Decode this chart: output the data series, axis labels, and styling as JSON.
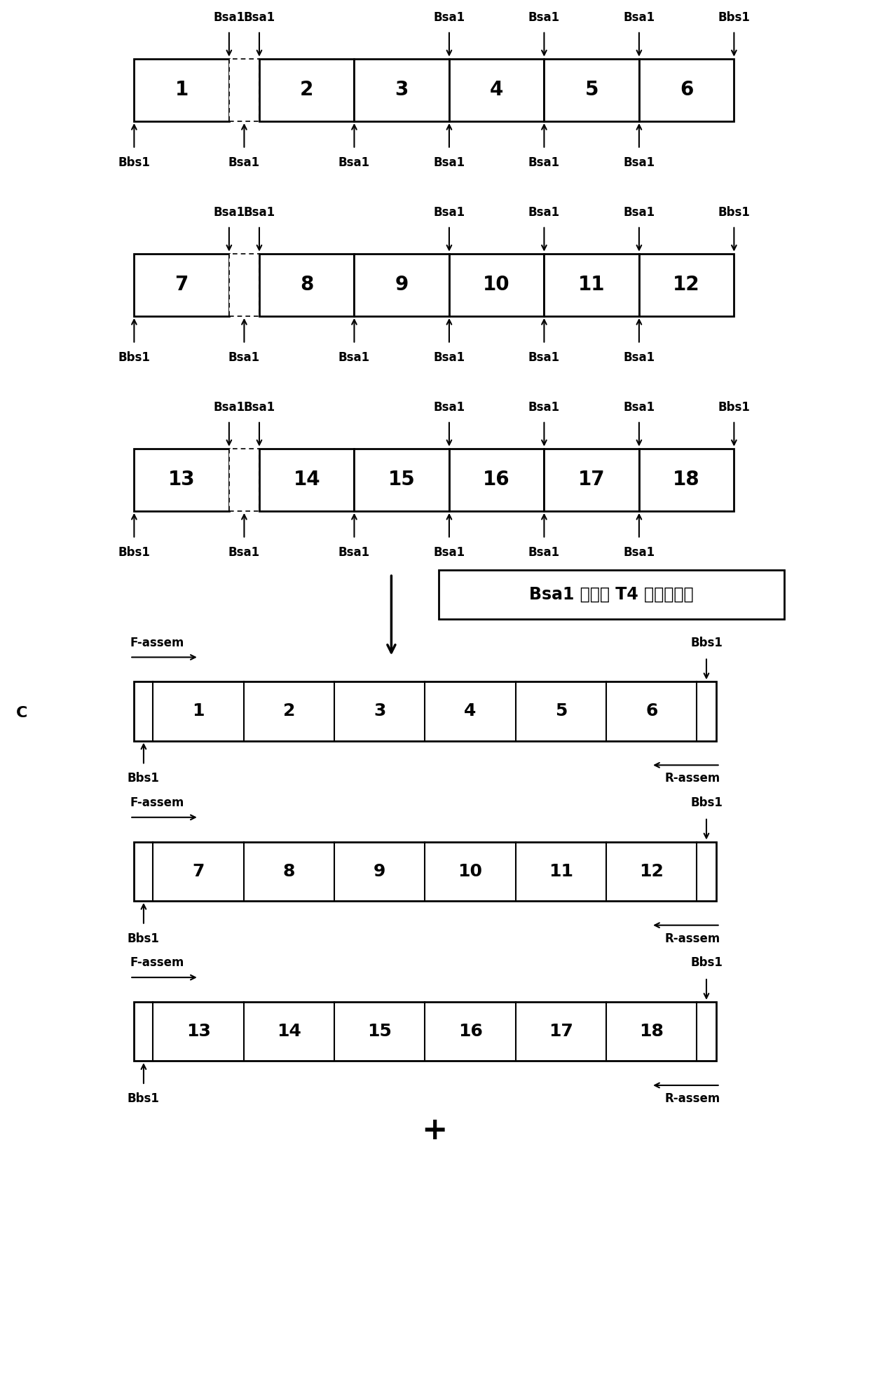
{
  "fig_width": 12.4,
  "fig_height": 19.94,
  "bg_color": "#ffffff",
  "row1_labels": [
    "1",
    "2",
    "3",
    "4",
    "5",
    "6"
  ],
  "row2_labels": [
    "7",
    "8",
    "9",
    "10",
    "11",
    "12"
  ],
  "row3_labels": [
    "13",
    "14",
    "15",
    "16",
    "17",
    "18"
  ],
  "top_labels_row1": [
    "Bsa1",
    "Bsa1",
    "Bsa1",
    "Bsa1",
    "Bsa1",
    "Bbs1"
  ],
  "bot_labels_row1": [
    "Bbs1",
    "Bsa1",
    "Bsa1",
    "Bsa1",
    "Bsa1",
    "Bsa1"
  ],
  "top_labels_row2": [
    "Bsa1",
    "Bsa1",
    "Bsa1",
    "Bsa1",
    "Bsa1",
    "Bbs1"
  ],
  "bot_labels_row2": [
    "Bbs1",
    "Bsa1",
    "Bsa1",
    "Bsa1",
    "Bsa1",
    "Bsa1"
  ],
  "top_labels_row3": [
    "Bsa1",
    "Bsa1",
    "Bsa1",
    "Bsa1",
    "Bsa1",
    "Bbs1"
  ],
  "bot_labels_row3": [
    "Bbs1",
    "Bsa1",
    "Bsa1",
    "Bsa1",
    "Bsa1",
    "Bsa1"
  ],
  "step_text": "Bsa1 酵切和 T4 连接胶回收",
  "section_C_label": "C",
  "assem_row_labels": [
    [
      "1",
      "2",
      "3",
      "4",
      "5",
      "6"
    ],
    [
      "7",
      "8",
      "9",
      "10",
      "11",
      "12"
    ],
    [
      "13",
      "14",
      "15",
      "16",
      "17",
      "18"
    ]
  ],
  "plus_sign": "+",
  "font_size_box": 20,
  "font_size_label": 12,
  "font_size_step": 17,
  "font_size_assem": 18
}
